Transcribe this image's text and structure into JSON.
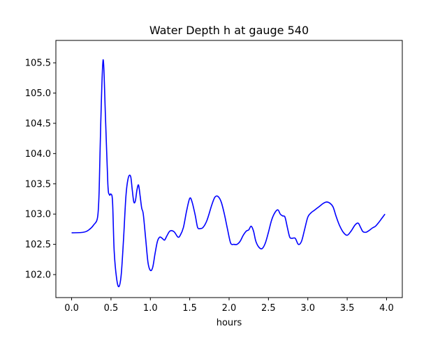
{
  "chart_data": {
    "type": "line",
    "title": "Water Depth h at gauge 540",
    "xlabel": "hours",
    "ylabel": "",
    "xlim": [
      -0.2,
      4.2
    ],
    "ylim": [
      101.62,
      105.87
    ],
    "grid": false,
    "x_ticks": [
      0.0,
      0.5,
      1.0,
      1.5,
      2.0,
      2.5,
      3.0,
      3.5,
      4.0
    ],
    "x_tick_labels": [
      "0.0",
      "0.5",
      "1.0",
      "1.5",
      "2.0",
      "2.5",
      "3.0",
      "3.5",
      "4.0"
    ],
    "y_ticks": [
      102.0,
      102.5,
      103.0,
      103.5,
      104.0,
      104.5,
      105.0,
      105.5
    ],
    "y_tick_labels": [
      "102.0",
      "102.5",
      "103.0",
      "103.5",
      "104.0",
      "104.5",
      "105.0",
      "105.5"
    ],
    "series": [
      {
        "color": "#0000ff",
        "x": [
          0.0,
          0.15,
          0.22,
          0.28,
          0.33,
          0.35,
          0.37,
          0.4,
          0.43,
          0.46,
          0.48,
          0.5,
          0.52,
          0.54,
          0.57,
          0.6,
          0.63,
          0.66,
          0.69,
          0.72,
          0.75,
          0.77,
          0.79,
          0.81,
          0.83,
          0.85,
          0.87,
          0.89,
          0.91,
          0.94,
          0.97,
          1.0,
          1.03,
          1.06,
          1.09,
          1.12,
          1.15,
          1.18,
          1.21,
          1.25,
          1.3,
          1.35,
          1.38,
          1.42,
          1.46,
          1.5,
          1.53,
          1.57,
          1.6,
          1.63,
          1.67,
          1.72,
          1.78,
          1.82,
          1.86,
          1.9,
          1.94,
          1.98,
          2.02,
          2.06,
          2.1,
          2.14,
          2.18,
          2.22,
          2.25,
          2.28,
          2.31,
          2.34,
          2.38,
          2.42,
          2.46,
          2.5,
          2.54,
          2.58,
          2.62,
          2.65,
          2.68,
          2.71,
          2.74,
          2.77,
          2.8,
          2.84,
          2.88,
          2.92,
          2.96,
          3.0,
          3.04,
          3.08,
          3.12,
          3.16,
          3.2,
          3.24,
          3.28,
          3.32,
          3.36,
          3.4,
          3.45,
          3.5,
          3.55,
          3.6,
          3.64,
          3.67,
          3.7,
          3.74,
          3.78,
          3.82,
          3.86,
          3.9,
          3.94,
          3.98
        ],
        "y": [
          102.69,
          102.7,
          102.74,
          102.82,
          102.95,
          103.4,
          104.5,
          105.55,
          104.6,
          103.5,
          103.32,
          103.33,
          103.2,
          102.4,
          101.95,
          101.8,
          102.0,
          102.6,
          103.3,
          103.6,
          103.62,
          103.4,
          103.2,
          103.22,
          103.4,
          103.48,
          103.3,
          103.1,
          103.0,
          102.6,
          102.2,
          102.07,
          102.12,
          102.35,
          102.55,
          102.62,
          102.6,
          102.57,
          102.64,
          102.72,
          102.71,
          102.62,
          102.65,
          102.78,
          103.05,
          103.26,
          103.2,
          102.98,
          102.78,
          102.76,
          102.78,
          102.9,
          103.15,
          103.28,
          103.29,
          103.2,
          103.0,
          102.75,
          102.52,
          102.5,
          102.5,
          102.55,
          102.65,
          102.72,
          102.74,
          102.8,
          102.72,
          102.55,
          102.45,
          102.43,
          102.52,
          102.7,
          102.9,
          103.02,
          103.07,
          103.0,
          102.97,
          102.95,
          102.78,
          102.62,
          102.6,
          102.6,
          102.5,
          102.55,
          102.75,
          102.95,
          103.02,
          103.06,
          103.1,
          103.14,
          103.18,
          103.2,
          103.18,
          103.12,
          102.96,
          102.82,
          102.7,
          102.65,
          102.72,
          102.82,
          102.85,
          102.78,
          102.71,
          102.7,
          102.73,
          102.77,
          102.8,
          102.86,
          102.93,
          103.0
        ]
      }
    ]
  }
}
